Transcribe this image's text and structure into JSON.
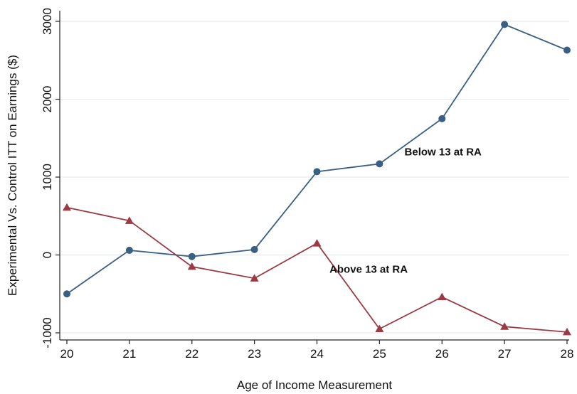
{
  "chart_data": {
    "type": "line",
    "title": "",
    "xlabel": "Age of Income Measurement",
    "ylabel": "Experimental Vs. Control ITT on Earnings ($)",
    "x": [
      20,
      21,
      22,
      23,
      24,
      25,
      26,
      27,
      28
    ],
    "xlim": [
      20,
      28
    ],
    "ylim": [
      -1000,
      3000
    ],
    "yticks": [
      -1000,
      0,
      1000,
      2000,
      3000
    ],
    "grid": true,
    "series": [
      {
        "name": "Below 13 at RA",
        "color": "#3a5f85",
        "marker": "circle",
        "values": [
          -500,
          60,
          -20,
          70,
          1070,
          1170,
          1750,
          2960,
          2630
        ]
      },
      {
        "name": "Above 13 at RA",
        "color": "#9b3a43",
        "marker": "triangle",
        "values": [
          610,
          440,
          -150,
          -300,
          150,
          -950,
          -540,
          -920,
          -990
        ]
      }
    ]
  }
}
